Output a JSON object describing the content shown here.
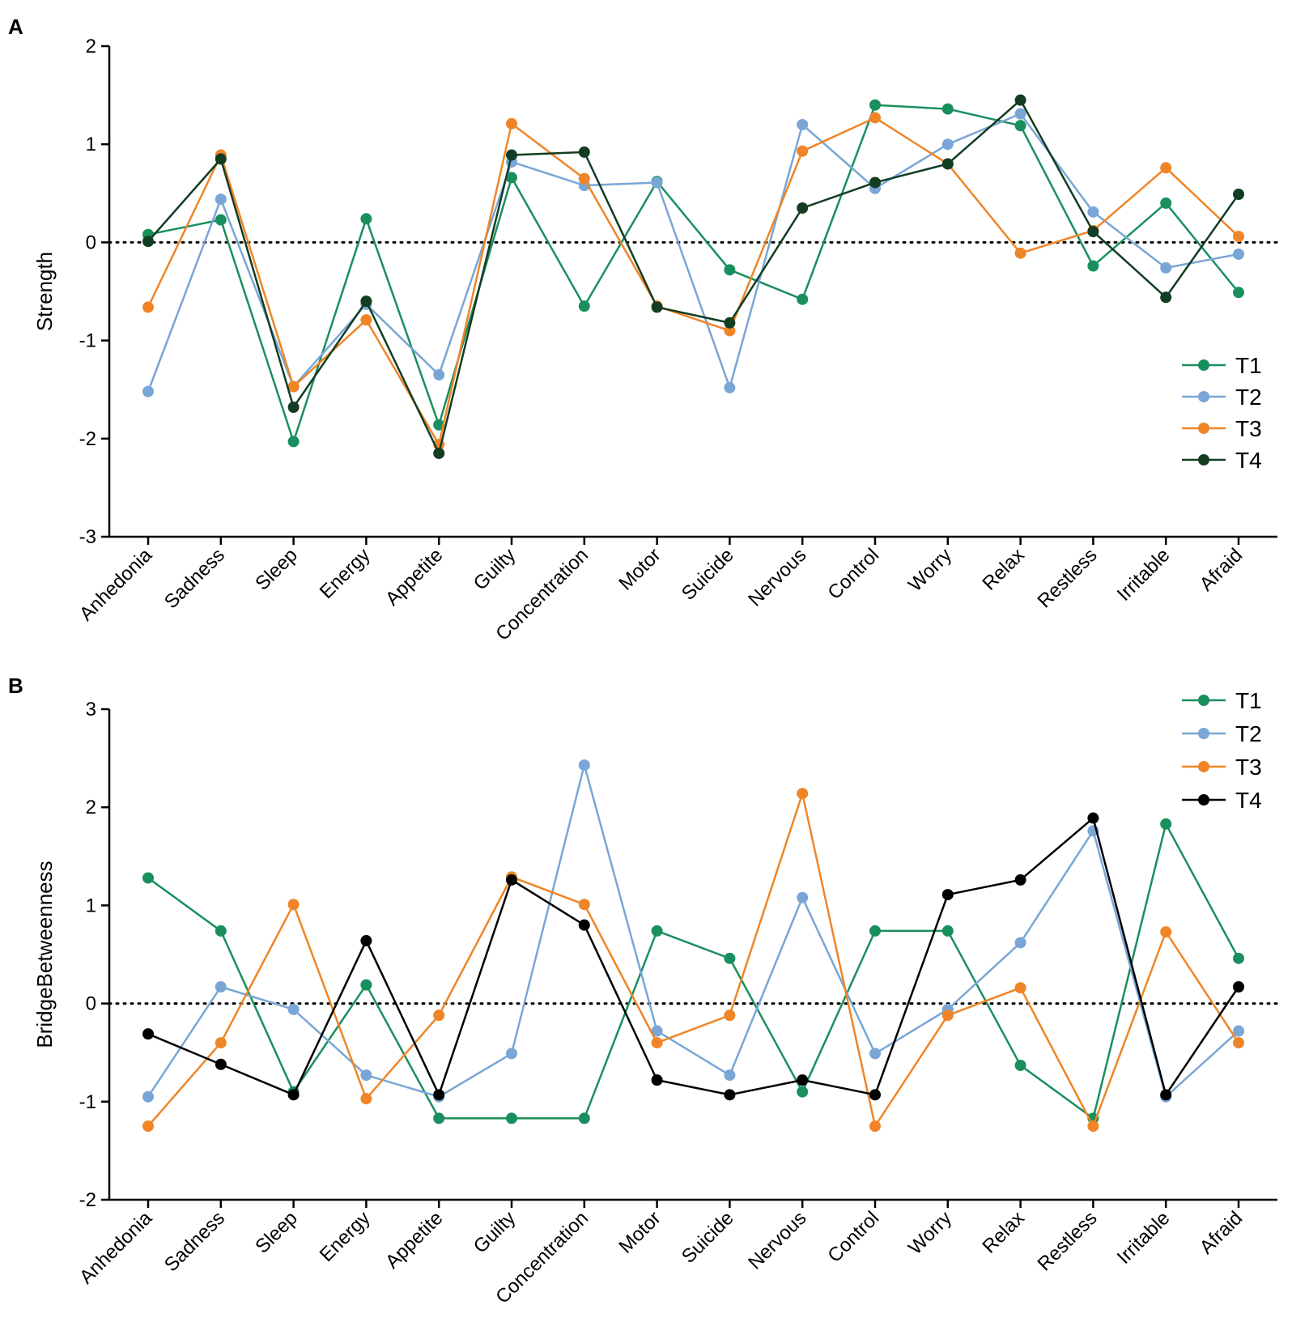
{
  "colors": {
    "T1": "#1a8f5e",
    "T2": "#79a6d6",
    "T3": "#ef8527",
    "T4": "#123d22",
    "T4_b": "#000000"
  },
  "chart_data": [
    {
      "panel": "A",
      "type": "line",
      "ylabel": "Strength",
      "xlabel": "",
      "ylim": [
        -3,
        2
      ],
      "yticks": [
        "-3",
        "-2",
        "-1",
        "0",
        "1",
        "2"
      ],
      "reference_line": 0,
      "legend_position": "right",
      "categories": [
        "Anhedonia",
        "Sadness",
        "Sleep",
        "Energy",
        "Appetite",
        "Guilty",
        "Concentration",
        "Motor",
        "Suicide",
        "Nervous",
        "Control",
        "Worry",
        "Relax",
        "Restless",
        "Irritable",
        "Afraid"
      ],
      "series": [
        {
          "name": "T1",
          "values": [
            0.08,
            0.23,
            -2.03,
            0.24,
            -1.86,
            0.66,
            -0.65,
            0.62,
            -0.28,
            -0.58,
            1.4,
            1.36,
            1.19,
            -0.24,
            0.4,
            -0.51
          ]
        },
        {
          "name": "T2",
          "values": [
            -1.52,
            0.44,
            -1.47,
            -0.63,
            -1.35,
            0.82,
            0.58,
            0.61,
            -1.48,
            1.2,
            0.55,
            1.0,
            1.31,
            0.31,
            -0.26,
            -0.12
          ]
        },
        {
          "name": "T3",
          "values": [
            -0.66,
            0.89,
            -1.47,
            -0.79,
            -2.06,
            1.21,
            0.65,
            -0.65,
            -0.9,
            0.93,
            1.27,
            0.8,
            -0.11,
            0.12,
            0.76,
            0.06
          ]
        },
        {
          "name": "T4",
          "values": [
            0.01,
            0.85,
            -1.68,
            -0.6,
            -2.15,
            0.89,
            0.92,
            -0.66,
            -0.82,
            0.35,
            0.61,
            0.8,
            1.45,
            0.11,
            -0.56,
            0.49
          ]
        }
      ]
    },
    {
      "panel": "B",
      "type": "line",
      "ylabel": "BridgeBetweenness",
      "xlabel": "",
      "ylim": [
        -2,
        3
      ],
      "yticks": [
        "-2",
        "-1",
        "0",
        "1",
        "2",
        "3"
      ],
      "reference_line": 0,
      "legend_position": "top-right",
      "categories": [
        "Anhedonia",
        "Sadness",
        "Sleep",
        "Energy",
        "Appetite",
        "Guilty",
        "Concentration",
        "Motor",
        "Suicide",
        "Nervous",
        "Control",
        "Worry",
        "Relax",
        "Restless",
        "Irritable",
        "Afraid"
      ],
      "series": [
        {
          "name": "T1",
          "values": [
            1.28,
            0.74,
            -0.9,
            0.19,
            -1.17,
            -1.17,
            -1.17,
            0.74,
            0.46,
            -0.9,
            0.74,
            0.74,
            -0.63,
            -1.17,
            1.83,
            0.46
          ]
        },
        {
          "name": "T2",
          "values": [
            -0.95,
            0.17,
            -0.06,
            -0.73,
            -0.95,
            -0.51,
            2.43,
            -0.28,
            -0.73,
            1.08,
            -0.51,
            -0.06,
            0.62,
            1.76,
            -0.95,
            -0.28
          ]
        },
        {
          "name": "T3",
          "values": [
            -1.25,
            -0.4,
            1.01,
            -0.97,
            -0.12,
            1.29,
            1.01,
            -0.4,
            -0.12,
            2.14,
            -1.25,
            -0.12,
            0.16,
            -1.25,
            0.73,
            -0.4
          ]
        },
        {
          "name": "T4",
          "values": [
            -0.31,
            -0.62,
            -0.93,
            0.64,
            -0.93,
            1.26,
            0.8,
            -0.78,
            -0.93,
            -0.78,
            -0.93,
            1.11,
            1.26,
            1.89,
            -0.93,
            0.17
          ]
        }
      ]
    }
  ]
}
